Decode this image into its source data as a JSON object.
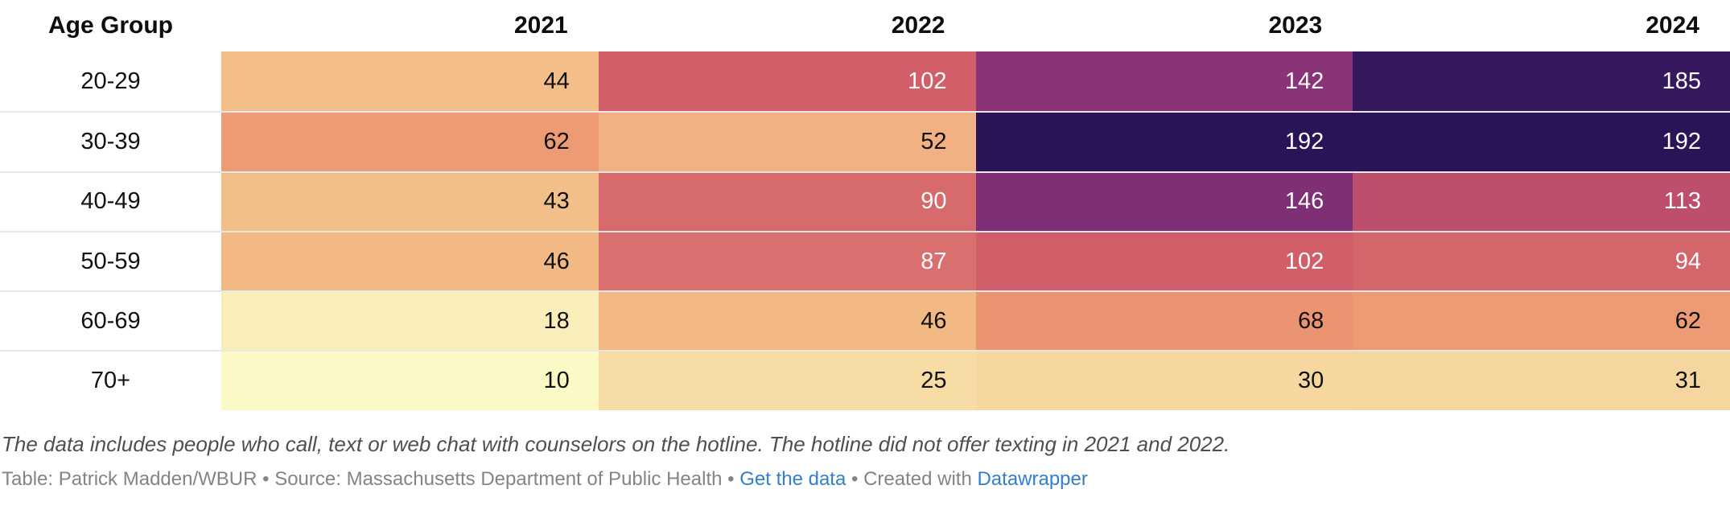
{
  "table": {
    "header": {
      "row_label": "Age Group",
      "years": [
        "2021",
        "2022",
        "2023",
        "2024"
      ]
    },
    "rows": [
      {
        "label": "20-29",
        "values": [
          "44",
          "102",
          "142",
          "185"
        ],
        "colors": [
          "#f3be88",
          "#d15e68",
          "#8a3377",
          "#36185f"
        ],
        "text_colors": [
          "#111111",
          "#ffffff",
          "#ffffff",
          "#ffffff"
        ]
      },
      {
        "label": "30-39",
        "values": [
          "62",
          "52",
          "192",
          "192"
        ],
        "colors": [
          "#ec9b74",
          "#f1b183",
          "#281457",
          "#281457"
        ],
        "text_colors": [
          "#111111",
          "#111111",
          "#ffffff",
          "#ffffff"
        ]
      },
      {
        "label": "40-49",
        "values": [
          "43",
          "90",
          "146",
          "113"
        ],
        "colors": [
          "#f3bf89",
          "#d66a6c",
          "#7e2f75",
          "#bd4f6d"
        ],
        "text_colors": [
          "#111111",
          "#ffffff",
          "#ffffff",
          "#ffffff"
        ]
      },
      {
        "label": "50-59",
        "values": [
          "46",
          "87",
          "102",
          "94"
        ],
        "colors": [
          "#f2b985",
          "#d96f6e",
          "#d15e68",
          "#d4656a"
        ],
        "text_colors": [
          "#111111",
          "#ffffff",
          "#ffffff",
          "#ffffff"
        ]
      },
      {
        "label": "60-69",
        "values": [
          "18",
          "46",
          "68",
          "62"
        ],
        "colors": [
          "#f9edba",
          "#f2b985",
          "#eb9471",
          "#ec9b74"
        ],
        "text_colors": [
          "#111111",
          "#111111",
          "#111111",
          "#111111"
        ]
      },
      {
        "label": "70+",
        "values": [
          "10",
          "25",
          "30",
          "31"
        ],
        "colors": [
          "#fbfac6",
          "#f7dca6",
          "#f6d7a0",
          "#f6d69f"
        ],
        "text_colors": [
          "#111111",
          "#111111",
          "#111111",
          "#111111"
        ]
      }
    ]
  },
  "caption": "The data includes people who call, text or web chat with counselors on the hotline. The hotline did not offer texting in 2021 and 2022.",
  "footer": {
    "credit": "Table: Patrick Madden/WBUR",
    "separator": "•",
    "source": "Source: Massachusetts Department of Public Health",
    "get_data_label": "Get the data",
    "created_with_label": "Created with",
    "datawrapper_label": "Datawrapper",
    "link_color": "#3080cc",
    "text_color": "#848484"
  },
  "chart_data": {
    "type": "heatmap",
    "title": "",
    "row_header": "Age Group",
    "categories": [
      "20-29",
      "30-39",
      "40-49",
      "50-59",
      "60-69",
      "70+"
    ],
    "columns": [
      "2021",
      "2022",
      "2023",
      "2024"
    ],
    "series": [
      {
        "name": "20-29",
        "values": [
          44,
          102,
          142,
          185
        ]
      },
      {
        "name": "30-39",
        "values": [
          62,
          52,
          192,
          192
        ]
      },
      {
        "name": "40-49",
        "values": [
          43,
          90,
          146,
          113
        ]
      },
      {
        "name": "50-59",
        "values": [
          46,
          87,
          102,
          94
        ]
      },
      {
        "name": "60-69",
        "values": [
          18,
          46,
          68,
          62
        ]
      },
      {
        "name": "70+",
        "values": [
          10,
          25,
          30,
          31
        ]
      }
    ],
    "value_range": [
      10,
      192
    ],
    "color_scale": {
      "low": "#fbfac6",
      "mid": "#d15e68",
      "high": "#281457"
    },
    "legend": "none",
    "grid": "row-separators"
  }
}
